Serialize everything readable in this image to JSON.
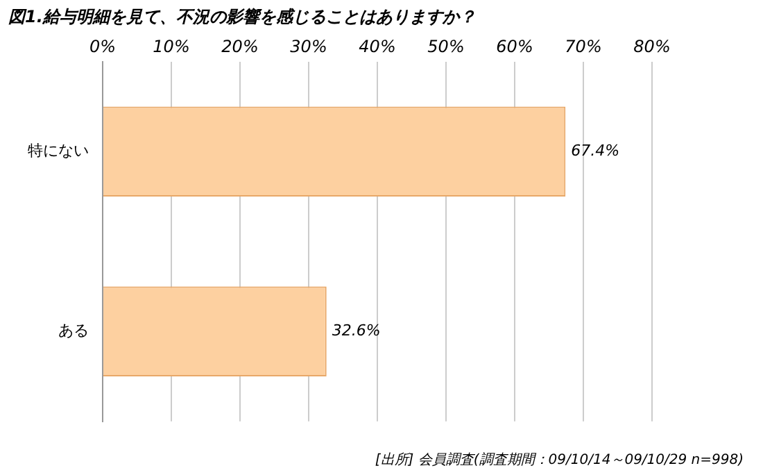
{
  "chart_data": {
    "type": "bar",
    "orientation": "horizontal",
    "title": "図1.給与明細を見て、不況の影響を感じることはありますか？",
    "categories": [
      "特にない",
      "ある"
    ],
    "values": [
      67.4,
      32.6
    ],
    "value_labels": [
      "67.4%",
      "32.6%"
    ],
    "color": "#fdd0a0",
    "xlim": [
      0,
      80
    ],
    "xticks": [
      {
        "value": 0,
        "label": "0%"
      },
      {
        "value": 10,
        "label": "10%"
      },
      {
        "value": 20,
        "label": "20%"
      },
      {
        "value": 30,
        "label": "30%"
      },
      {
        "value": 40,
        "label": "40%"
      },
      {
        "value": 50,
        "label": "50%"
      },
      {
        "value": 60,
        "label": "60%"
      },
      {
        "value": 70,
        "label": "70%"
      },
      {
        "value": 80,
        "label": "80%"
      }
    ],
    "grid": "x",
    "annotations": [
      "[出所] 会員調査(調査期間：09/10/14～09/10/29 n=998)"
    ]
  }
}
